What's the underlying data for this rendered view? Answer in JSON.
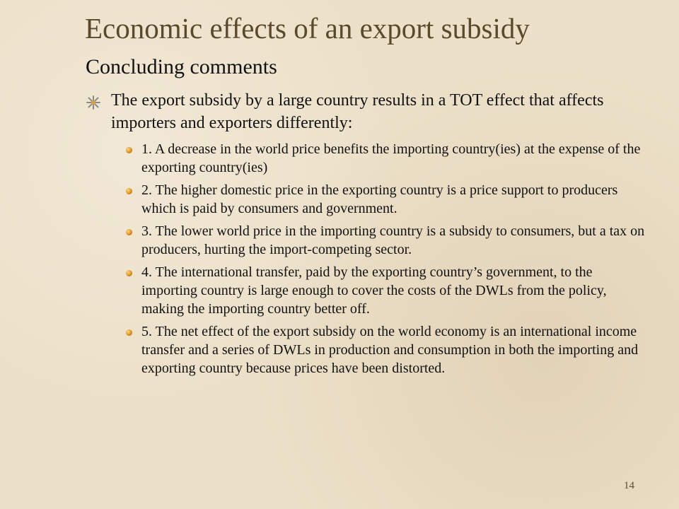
{
  "slide": {
    "title": "Economic effects of an export subsidy",
    "subtitle": "Concluding comments",
    "main_bullet": "The export subsidy by a large country results in a TOT effect that affects importers and exporters differently:",
    "sub_bullets": [
      "1. A decrease in the world price benefits the importing country(ies) at the expense of the exporting country(ies)",
      "2. The higher domestic price in the exporting country is a price support to producers which is paid by consumers and government.",
      "3. The lower world price in the importing country is a subsidy to consumers, but a tax on producers, hurting the import-competing sector.",
      "4. The international transfer, paid by the exporting country’s government, to the importing country is large enough to cover the costs of the DWLs from the policy, making the importing country better off.",
      "5. The net effect of the export subsidy on the world economy is an international income transfer and a series of DWLs in production and consumption in both the importing and exporting country because prices have been distorted."
    ],
    "page_number": "14"
  },
  "colors": {
    "background": "#ece0c8",
    "title": "#5a4a2c",
    "bullet_accent": "#d98a1a"
  },
  "icons": {
    "main_bullet": "starburst-bullet-icon",
    "sub_bullet": "orb-bullet-icon"
  }
}
